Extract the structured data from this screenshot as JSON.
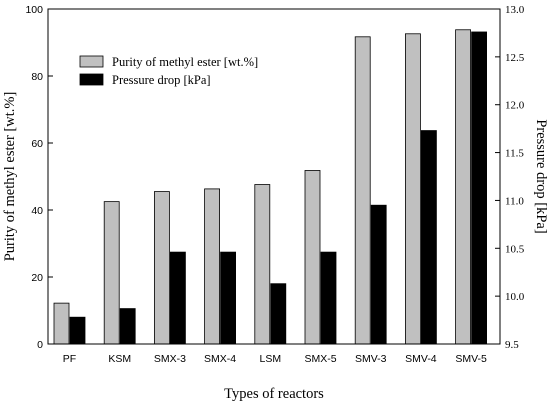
{
  "chart_data": {
    "type": "bar",
    "title": "",
    "xlabel": "Types of reactors",
    "ylabel": "Purity of methyl ester [wt.%]",
    "y2label": "Pressure drop [kPa]",
    "categories": [
      "PF",
      "KSM",
      "SMX-3",
      "SMX-4",
      "LSM",
      "SMX-5",
      "SMV-3",
      "SMV-4",
      "SMV-5"
    ],
    "ylim": [
      0,
      100
    ],
    "yticks": [
      0,
      20,
      40,
      60,
      80,
      100
    ],
    "y2lim": [
      9.5,
      13.0
    ],
    "y2ticks": [
      "9.5",
      "10.0",
      "10.5",
      "11.0",
      "11.5",
      "12.0",
      "12.5",
      "13.0"
    ],
    "legend_position": "top-left",
    "grid": false,
    "series": [
      {
        "name": "Purity of methyl ester [wt.%]",
        "axis": "left",
        "color": "#c0c0c0",
        "values": [
          12.2,
          42.5,
          45.5,
          46.3,
          47.6,
          51.8,
          91.7,
          92.6,
          93.8
        ]
      },
      {
        "name": "Pressure drop [kPa]",
        "axis": "right",
        "color": "#000000",
        "values": [
          9.78,
          9.87,
          10.46,
          10.46,
          10.13,
          10.46,
          10.95,
          11.73,
          12.76
        ]
      }
    ]
  }
}
